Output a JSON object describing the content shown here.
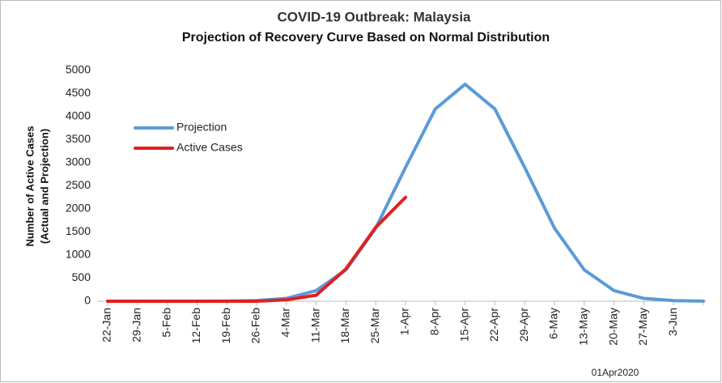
{
  "chart_data": {
    "type": "line",
    "title": "COVID-19 Outbreak: Malaysia",
    "subtitle": "Projection of Recovery Curve Based on Normal Distribution",
    "y_label": [
      "Number of Active Cases",
      "(Actual and Projection)"
    ],
    "note": "01Apr2020",
    "categories": [
      "22-Jan",
      "29-Jan",
      "5-Feb",
      "12-Feb",
      "19-Feb",
      "26-Feb",
      "4-Mar",
      "11-Mar",
      "18-Mar",
      "25-Mar",
      "1-Apr",
      "8-Apr",
      "15-Apr",
      "22-Apr",
      "29-Apr",
      "6-May",
      "13-May",
      "20-May",
      "27-May",
      "3-Jun",
      null
    ],
    "series": [
      {
        "name": "Projection",
        "color": "#5b9bd5",
        "values": [
          0,
          0,
          0,
          0,
          2,
          13,
          61,
          230,
          680,
          1585,
          2900,
          4165,
          4700,
          4165,
          2900,
          1585,
          680,
          230,
          61,
          13,
          2
        ]
      },
      {
        "name": "Active Cases",
        "color": "#e02020",
        "values": [
          0,
          0,
          0,
          0,
          0,
          0,
          30,
          130,
          700,
          1600,
          2250,
          null,
          null,
          null,
          null,
          null,
          null,
          null,
          null,
          null,
          null
        ]
      }
    ],
    "ylim": [
      0,
      5000
    ],
    "yticks": [
      0,
      500,
      1000,
      1500,
      2000,
      2500,
      3000,
      3500,
      4000,
      4500,
      5000
    ],
    "grid": false,
    "legend": "upper-left"
  }
}
